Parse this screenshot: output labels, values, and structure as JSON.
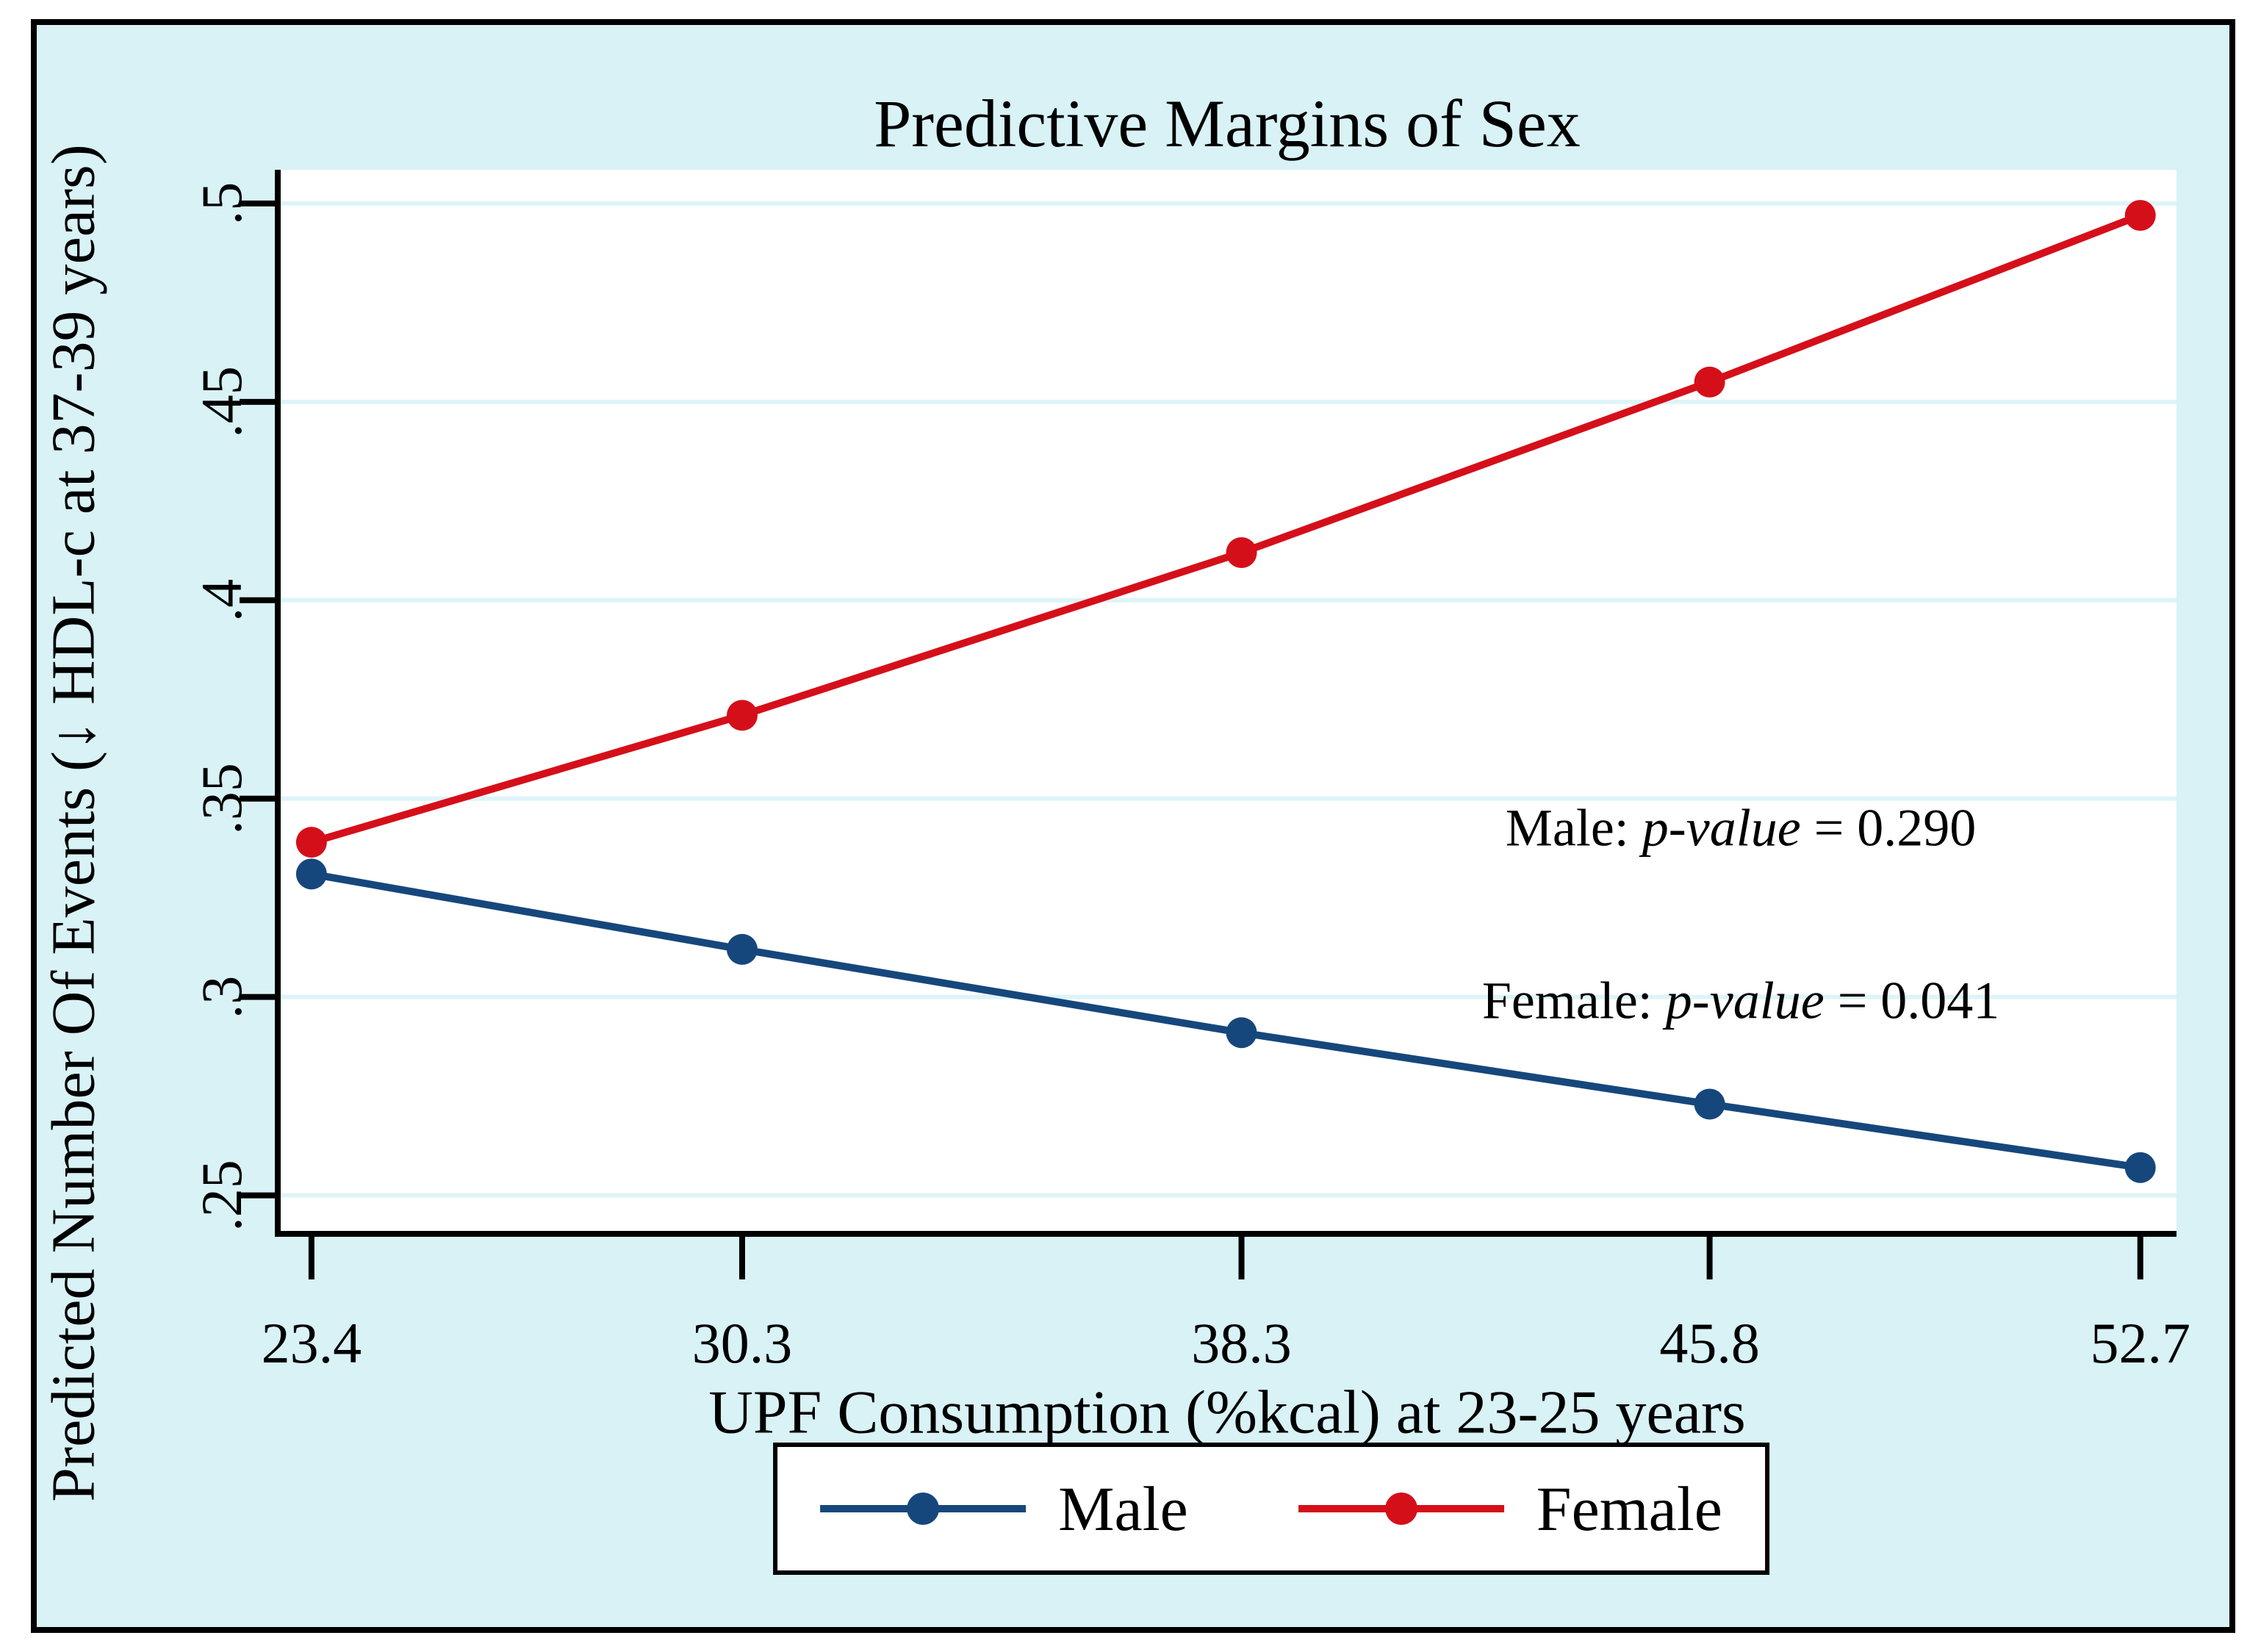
{
  "figure": {
    "window_title": "Predictive Margins of Sex"
  },
  "colors": {
    "figure_background": "#d8f2f6",
    "plot_background": "#ffffff",
    "gridline": "#def4f9",
    "axis": "#000000",
    "male_series": "#16477c",
    "female_series": "#d50f1a",
    "border": "#000000"
  },
  "chart_data": {
    "type": "line",
    "title": "Predictive Margins of Sex",
    "xlabel": "UPF Consumption (%kcal) at 23-25 years",
    "ylabel": "Predicted Number Of Events (↓ HDL-c at 37-39 years)",
    "x": [
      23.4,
      30.3,
      38.3,
      45.8,
      52.7
    ],
    "x_tick_labels": [
      "23.4",
      "30.3",
      "38.3",
      "45.8",
      "52.7"
    ],
    "y_ticks": [
      0.25,
      0.3,
      0.35,
      0.4,
      0.45,
      0.5
    ],
    "y_tick_labels": [
      ".25",
      ".3",
      ".35",
      ".4",
      ".45",
      ".5"
    ],
    "xlim": [
      22.86,
      53.28
    ],
    "ylim": [
      0.2403,
      0.5085
    ],
    "grid": "horizontal",
    "legend_position": "bottom-center",
    "series": [
      {
        "name": "Male",
        "color": "#16477c",
        "marker": "circle",
        "values": [
          0.331,
          0.312,
          0.291,
          0.273,
          0.257
        ],
        "p_value": "0.290"
      },
      {
        "name": "Female",
        "color": "#d50f1a",
        "marker": "circle",
        "values": [
          0.339,
          0.371,
          0.412,
          0.455,
          0.497
        ],
        "p_value": "0.041"
      }
    ],
    "annotations": [
      {
        "text_prefix": "Male: ",
        "text_italic": "p-value",
        "text_suffix": " = 0.290",
        "x": 46.3,
        "y": 0.3425
      },
      {
        "text_prefix": "Female: ",
        "text_italic": "p-value",
        "text_suffix": " = 0.041",
        "x": 46.3,
        "y": 0.299
      }
    ]
  }
}
